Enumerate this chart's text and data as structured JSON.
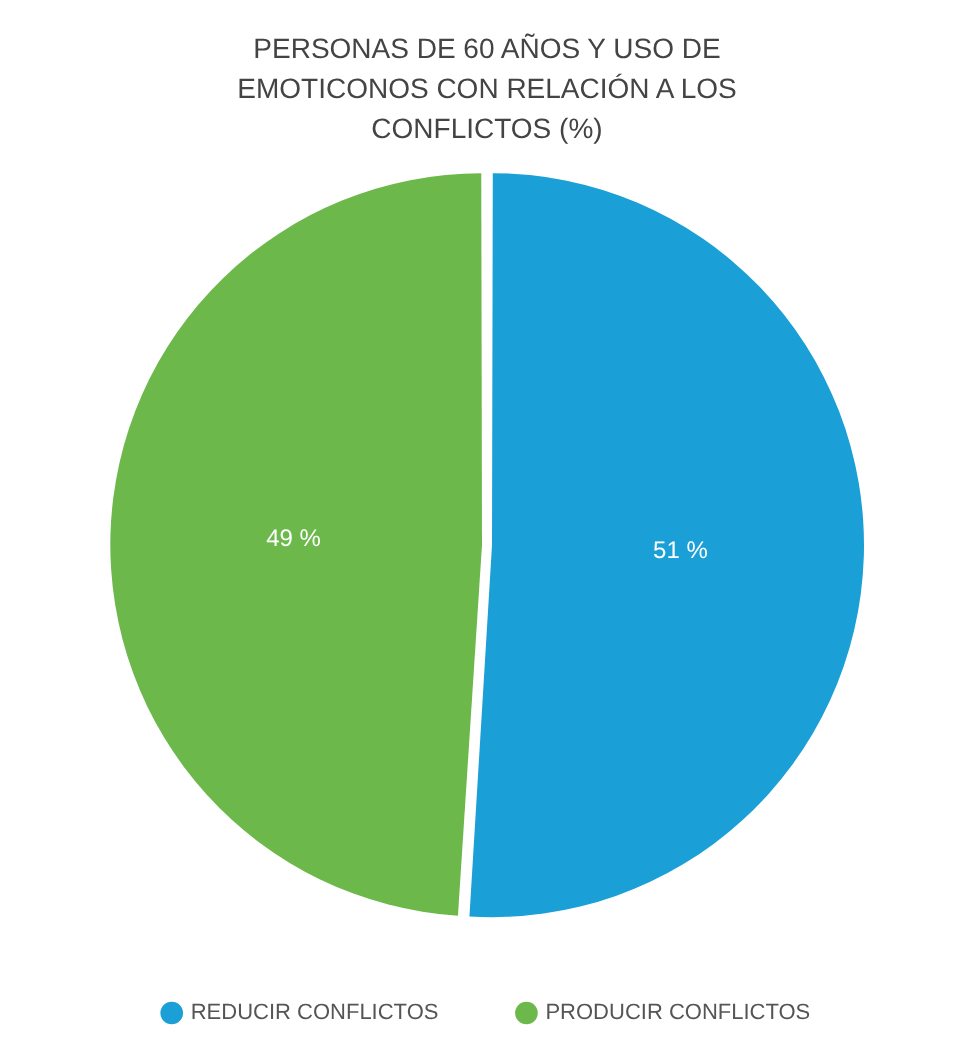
{
  "chart_data": {
    "type": "pie",
    "title": "PERSONAS DE 60 AÑOS Y USO DE EMOTICONOS CON RELACIÓN A LOS CONFLICTOS (%)",
    "categories": [
      "REDUCIR CONFLICTOS",
      "PRODUCIR CONFLICTOS"
    ],
    "values": [
      51,
      49
    ],
    "colors": [
      "#1a9fd6",
      "#6cb84a"
    ],
    "value_labels": [
      "51 %",
      "49 %"
    ],
    "legend": "bottom"
  }
}
